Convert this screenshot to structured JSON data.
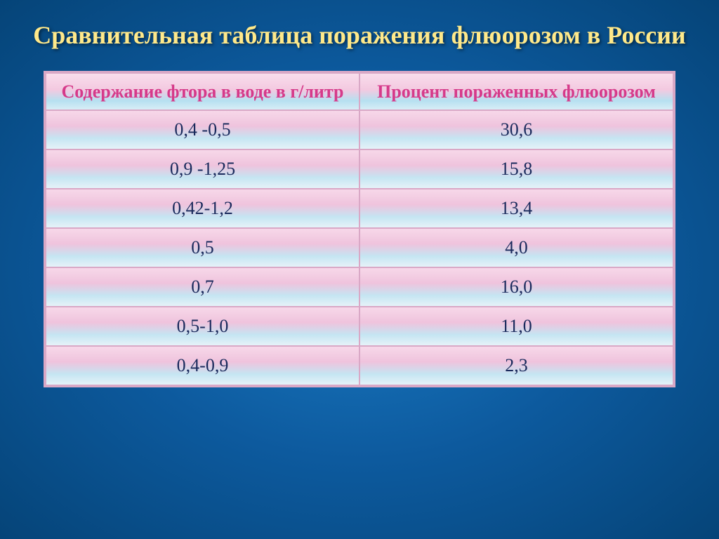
{
  "title": "Сравнительная таблица поражения флюорозом в России",
  "table": {
    "columns": [
      "Содержание фтора в воде в г/литр",
      "Процент пораженных флюорозом"
    ],
    "rows": [
      [
        "0,4 -0,5",
        "30,6"
      ],
      [
        "0,9 -1,25",
        "15,8"
      ],
      [
        "0,42-1,2",
        "13,4"
      ],
      [
        "0,5",
        "4,0"
      ],
      [
        "0,7",
        "16,0"
      ],
      [
        "0,5-1,0",
        "11,0"
      ],
      [
        "0,4-0,9",
        "2,3"
      ]
    ],
    "header_text_color": "#d63a8a",
    "cell_text_color": "#1a2a5c",
    "border_color": "#d9a8c6",
    "header_fontsize": 26,
    "cell_fontsize": 26,
    "title_color": "#ffe98a",
    "title_fontsize": 36,
    "background_gradient": [
      "#1a7bc4",
      "#0d5a9e",
      "#054478"
    ],
    "row_gradient": [
      "#f7d8e9",
      "#efc3dd",
      "#c5e5f2",
      "#e5f2f8"
    ],
    "header_gradient": [
      "#f9ddec",
      "#f3c9e0",
      "#b6e0f0",
      "#d8edf6"
    ]
  }
}
